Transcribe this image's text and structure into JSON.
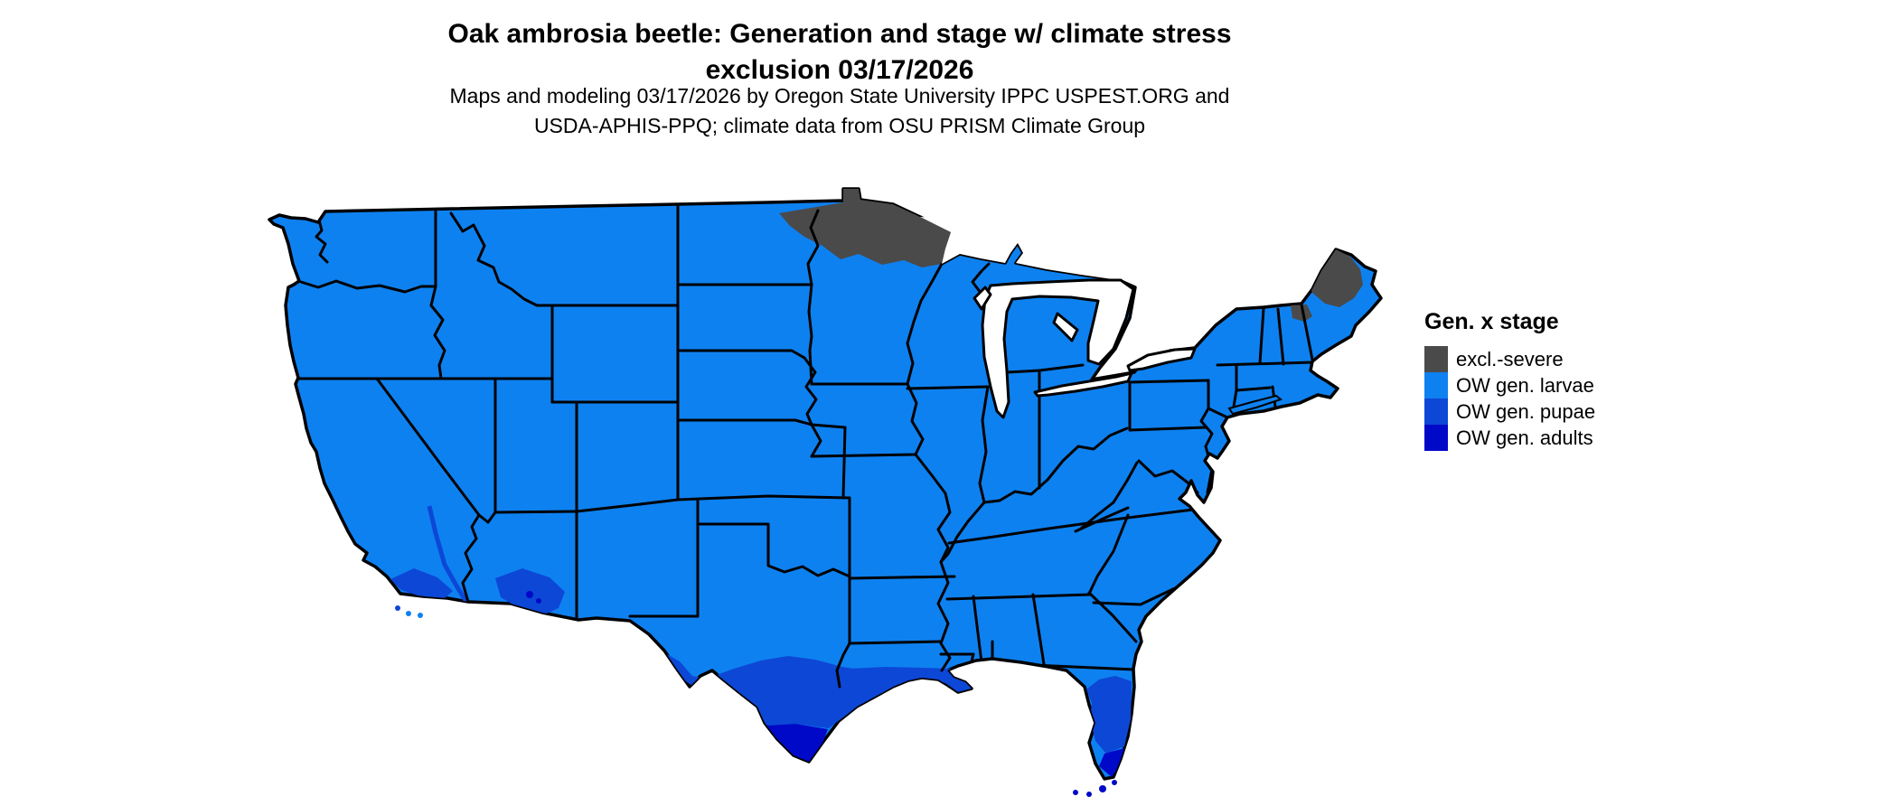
{
  "title": {
    "line1": "Oak ambrosia beetle: Generation and stage w/ climate stress",
    "line2": "exclusion 03/17/2026"
  },
  "subtitle": {
    "line1": "Maps and modeling 03/17/2026 by Oregon State University IPPC USPEST.ORG and",
    "line2": "USDA-APHIS-PPQ; climate data from OSU PRISM Climate Group"
  },
  "legend": {
    "title": "Gen. x stage",
    "items": [
      {
        "label": "excl.-severe",
        "color": "#4a4a4a"
      },
      {
        "label": "OW gen. larvae",
        "color": "#0e81f0"
      },
      {
        "label": "OW gen. pupae",
        "color": "#0d47d6"
      },
      {
        "label": "OW gen. adults",
        "color": "#0009c8"
      }
    ]
  },
  "palette": {
    "excl": "#4a4a4a",
    "larvae": "#0e81f0",
    "pupae": "#0d47d6",
    "adults": "#0009c8",
    "water": "#ffffff",
    "line": "#000000",
    "background": "#ffffff"
  }
}
